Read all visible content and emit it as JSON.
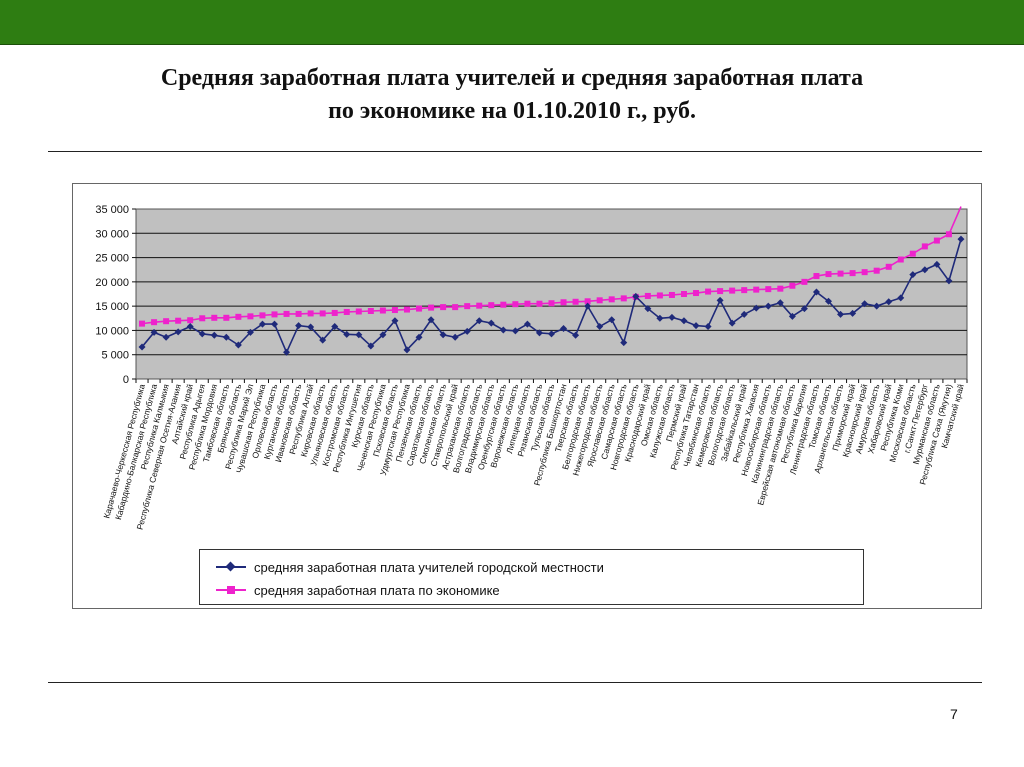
{
  "slide": {
    "title_line1": "Средняя заработная плата учителей и  средняя заработная  плата",
    "title_line2": "по экономике  на 01.10.2010 г., руб.",
    "page_number": "7"
  },
  "colors": {
    "top_bar": "#2e7d12",
    "plot_background": "#c0c0c0",
    "teachers_series": "#1f2a7a",
    "economy_series": "#ee22cc"
  },
  "chart_data": {
    "type": "line",
    "title": "",
    "xlabel": "",
    "ylabel": "",
    "ylim": [
      0,
      35000
    ],
    "yticks": [
      "0",
      "5 000",
      "10 000",
      "15 000",
      "20 000",
      "25 000",
      "30 000",
      "35 000"
    ],
    "grid": "horizontal",
    "legend_position": "bottom",
    "categories": [
      "Карачаево-Черкесская Республика",
      "Кабардино-Балкарская Республика",
      "Республика Калмыкия",
      "Республика Северная Осетия-Алания",
      "Алтайский край",
      "Республика Адыгея",
      "Республика Мордовия",
      "Тамбовская область",
      "Брянская область",
      "Республика Марий Эл",
      "Чувашская Республика",
      "Орловская область",
      "Курганская область",
      "Ивановская область",
      "Республика Алтай",
      "Кировская область",
      "Ульяновская область",
      "Костромская область",
      "Республика Ингушетия",
      "Курская область",
      "Чеченская Республика",
      "Псковская область",
      "Удмуртская Республика",
      "Пензенская область",
      "Саратовская область",
      "Смоленская область",
      "Ставропольский край",
      "Астраханская область",
      "Волгоградская область",
      "Владимирская область",
      "Оренбургская область",
      "Воронежская область",
      "Липецкая область",
      "Рязанская область",
      "Тульская область",
      "Республика Башкортостан",
      "Тверская область",
      "Белгородская область",
      "Нижегородская область",
      "Ярославская область",
      "Самарская область",
      "Новгородская область",
      "Краснодарский край",
      "Омская область",
      "Калужская область",
      "Пермский край",
      "Республика Татарстан",
      "Челябинская область",
      "Кемеровская область",
      "Вологодская область",
      "Забайкальский край",
      "Республика Хакасия",
      "Новосибирская область",
      "Калининградская область",
      "Еврейская автономная область",
      "Республика Карелия",
      "Ленинградская область",
      "Томская область",
      "Архангельская область",
      "Приморский край",
      "Красноярский край",
      "Амурская область",
      "Хабаровский край",
      "Республика Коми",
      "Московская область",
      "г.Санкт-Петербург",
      "Мурманская область",
      "Республика Саха (Якутия)",
      "Камчатский край"
    ],
    "series": [
      {
        "name": "средняя заработная плата учителей городской местности",
        "marker": "diamond",
        "values": [
          6600,
          9600,
          8600,
          9700,
          10800,
          9300,
          9000,
          8600,
          7000,
          9600,
          11300,
          11300,
          5500,
          11000,
          10700,
          8000,
          10800,
          9200,
          9100,
          6800,
          9100,
          12000,
          6000,
          8600,
          12200,
          9100,
          8600,
          9800,
          12000,
          11500,
          10100,
          9900,
          11300,
          9500,
          9300,
          10400,
          9000,
          15000,
          10800,
          12200,
          7500,
          17000,
          14500,
          12500,
          12700,
          12000,
          11000,
          10800,
          16200,
          11500,
          13300,
          14600,
          15000,
          15700,
          12900,
          14500,
          17900,
          16000,
          13300,
          13500,
          15500,
          15000,
          15900,
          16700,
          21500,
          22500,
          23600,
          20200,
          28800
        ]
      },
      {
        "name": "средняя заработная плата по экономике",
        "marker": "square",
        "values": [
          11400,
          11700,
          11900,
          12000,
          12100,
          12500,
          12600,
          12600,
          12800,
          12900,
          13100,
          13300,
          13400,
          13400,
          13500,
          13500,
          13600,
          13800,
          13900,
          14000,
          14100,
          14200,
          14300,
          14500,
          14700,
          14800,
          14800,
          15000,
          15100,
          15200,
          15300,
          15400,
          15500,
          15500,
          15600,
          15800,
          15900,
          16000,
          16200,
          16400,
          16600,
          16900,
          17100,
          17200,
          17300,
          17500,
          17700,
          18000,
          18100,
          18200,
          18300,
          18400,
          18500,
          18600,
          19200,
          20000,
          21200,
          21600,
          21700,
          21800,
          22000,
          22300,
          23100,
          24600,
          25800,
          27300,
          28500,
          29800,
          35500
        ]
      }
    ]
  }
}
